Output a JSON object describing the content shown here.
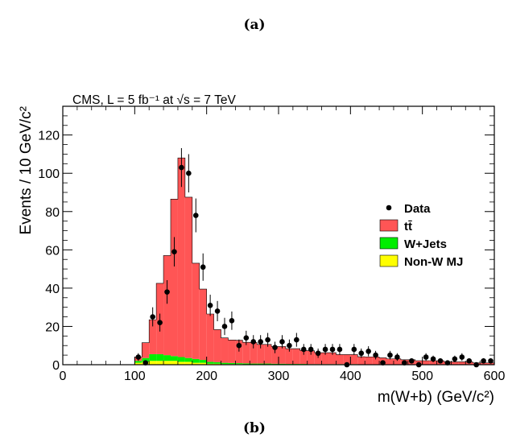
{
  "panel_labels": {
    "top": "(a)",
    "bottom": "(b)"
  },
  "chart_data": {
    "type": "bar",
    "title": "CMS, L = 5 fb⁻¹ at √s = 7 TeV",
    "xlabel": "m(W+b) (GeV/c²)",
    "ylabel": "Events / 10 GeV/c²",
    "xlim": [
      0,
      600
    ],
    "ylim": [
      0,
      135
    ],
    "x_ticks": [
      0,
      100,
      200,
      300,
      400,
      500,
      600
    ],
    "y_ticks": [
      0,
      20,
      40,
      60,
      80,
      100,
      120
    ],
    "bin_width": 10,
    "bin_low_edges": [
      100,
      110,
      120,
      130,
      140,
      150,
      160,
      170,
      180,
      190,
      200,
      210,
      220,
      230,
      240,
      250,
      260,
      270,
      280,
      290,
      300,
      310,
      320,
      330,
      340,
      350,
      360,
      370,
      380,
      390,
      400,
      410,
      420,
      430,
      440,
      450,
      460,
      470,
      480,
      490,
      500,
      510,
      520,
      530,
      540,
      550,
      560,
      570,
      580,
      590
    ],
    "stacked_series": [
      {
        "name": "Non-W MJ",
        "color": "#ffff00",
        "values": [
          1,
          1.5,
          2,
          2,
          2,
          2,
          1.5,
          1.5,
          1,
          1,
          0.5,
          0.5,
          0.3,
          0.3,
          0.3,
          0.2,
          0.2,
          0.2,
          0.2,
          0.2,
          0.2,
          0.1,
          0.1,
          0.1,
          0.1,
          0.1,
          0.1,
          0.1,
          0.1,
          0.1,
          0.1,
          0,
          0,
          0,
          0,
          0,
          0,
          0,
          0,
          0,
          0,
          0,
          0,
          0,
          0,
          0,
          0,
          0,
          0,
          0
        ]
      },
      {
        "name": "W+Jets",
        "color": "#00ee00",
        "values": [
          1,
          2,
          3.5,
          3.5,
          3,
          2.5,
          2.5,
          2,
          2,
          1.5,
          1,
          0.8,
          0.7,
          0.6,
          0.5,
          0.5,
          0.4,
          0.4,
          0.4,
          0.3,
          0.3,
          0.3,
          0.3,
          0.3,
          0.2,
          0.2,
          0.2,
          0.2,
          0.2,
          0.2,
          0.2,
          0.2,
          0.1,
          0.1,
          0.1,
          0.1,
          0.1,
          0.1,
          0.1,
          0.1,
          0.1,
          0.1,
          0.1,
          0,
          0,
          0,
          0,
          0,
          0,
          0
        ]
      },
      {
        "name": "tt̄",
        "color": "#ff5555",
        "values": [
          2,
          8,
          18,
          37,
          52,
          82,
          104,
          84,
          50,
          37,
          25,
          17,
          13,
          12,
          12,
          11,
          11,
          10,
          10,
          9,
          9,
          8,
          8,
          7,
          7,
          6,
          6,
          6,
          5,
          5,
          5,
          4,
          4,
          4,
          3.5,
          3,
          3,
          2.5,
          2.5,
          2,
          2,
          2,
          2,
          1.5,
          1.5,
          1.5,
          1.5,
          1,
          1,
          1
        ]
      }
    ],
    "data_points": {
      "name": "Data",
      "x": [
        105,
        115,
        125,
        135,
        145,
        155,
        165,
        175,
        185,
        195,
        205,
        215,
        225,
        235,
        245,
        255,
        265,
        275,
        285,
        295,
        305,
        315,
        325,
        335,
        345,
        355,
        365,
        375,
        385,
        395,
        405,
        415,
        425,
        435,
        445,
        455,
        465,
        475,
        485,
        495,
        505,
        515,
        525,
        535,
        545,
        555,
        565,
        575,
        585,
        595
      ],
      "y": [
        4,
        1,
        25,
        22,
        38,
        59,
        103,
        100,
        78,
        51,
        31,
        28,
        20,
        23,
        10,
        14,
        12,
        12,
        13,
        9,
        12,
        10,
        13,
        8,
        8,
        6,
        8,
        8,
        8,
        0,
        8,
        6,
        7,
        5,
        1,
        5,
        4,
        1,
        2,
        0,
        4,
        3,
        2,
        1,
        3,
        4,
        2,
        0,
        2,
        2
      ]
    },
    "legend": {
      "placement": "right",
      "entries": [
        "Data",
        "tt̄",
        "W+Jets",
        "Non-W MJ"
      ]
    },
    "grid": false
  }
}
